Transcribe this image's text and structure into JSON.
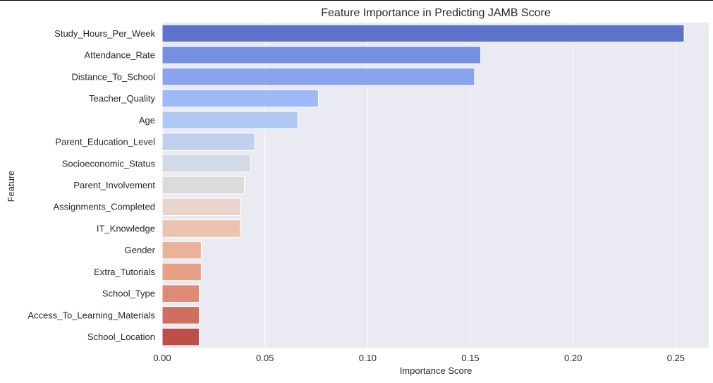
{
  "chart_data": {
    "type": "bar",
    "orientation": "horizontal",
    "title": "Feature Importance in Predicting JAMB Score",
    "xlabel": "Importance Score",
    "ylabel": "Feature",
    "xlim": [
      0,
      0.266
    ],
    "xticks": [
      {
        "value": 0.0,
        "label": "0.00"
      },
      {
        "value": 0.05,
        "label": "0.05"
      },
      {
        "value": 0.1,
        "label": "0.10"
      },
      {
        "value": 0.15,
        "label": "0.15"
      },
      {
        "value": 0.2,
        "label": "0.20"
      },
      {
        "value": 0.25,
        "label": "0.25"
      }
    ],
    "grid": true,
    "background": "#eaeaf2",
    "categories": [
      "Study_Hours_Per_Week",
      "Attendance_Rate",
      "Distance_To_School",
      "Teacher_Quality",
      "Age",
      "Parent_Education_Level",
      "Socioeconomic_Status",
      "Parent_Involvement",
      "Assignments_Completed",
      "IT_Knowledge",
      "Gender",
      "Extra_Tutorials",
      "School_Type",
      "Access_To_Learning_Materials",
      "School_Location"
    ],
    "values": [
      0.254,
      0.155,
      0.152,
      0.076,
      0.066,
      0.045,
      0.043,
      0.04,
      0.038,
      0.038,
      0.019,
      0.019,
      0.018,
      0.018,
      0.018
    ],
    "colors": [
      "#5e72cc",
      "#7590de",
      "#88a4ec",
      "#9db9f7",
      "#b0c9f4",
      "#c0d1f0",
      "#d2dae8",
      "#dcdadb",
      "#e8d5cc",
      "#ecc3af",
      "#ebb29a",
      "#e79f86",
      "#df8a74",
      "#d06f5f",
      "#bf4d48"
    ]
  }
}
